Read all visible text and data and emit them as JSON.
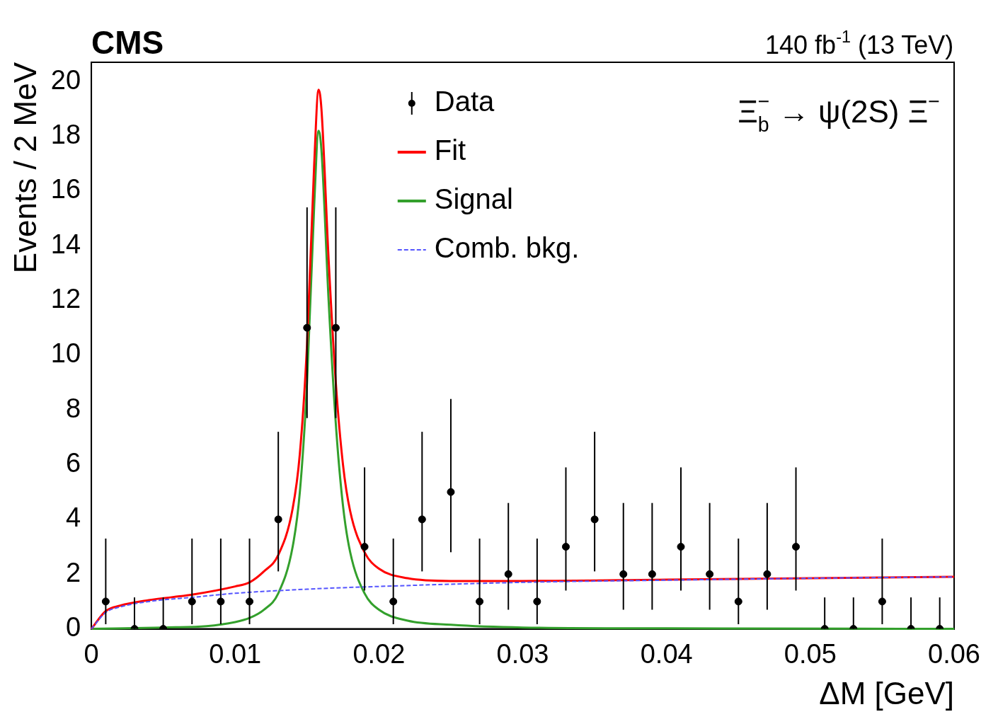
{
  "chart_data": {
    "type": "scatter",
    "title": "CMS",
    "subtitle": "140 fb$^{-1}$ (13 TeV)",
    "xlabel": "ΔM [GeV]",
    "ylabel": "Events / 2 MeV",
    "annotations": [
      "Ξ$_{b}$$^{−}$ → ψ(2S) Ξ$^{−}$"
    ],
    "xlim": [
      0,
      0.06
    ],
    "xticks": [
      0,
      0.01,
      0.02,
      0.03,
      0.04,
      0.05,
      0.06
    ],
    "ylim": [
      0,
      20.7
    ],
    "yticks": [
      0,
      2,
      4,
      6,
      8,
      10,
      12,
      14,
      16,
      18,
      20
    ],
    "grid": false,
    "legend": "top",
    "marker": "circle",
    "series": [
      {
        "name": "Data",
        "type": "scatter",
        "color": "#000000",
        "x": [
          0.001,
          0.003,
          0.005,
          0.007,
          0.009,
          0.011,
          0.013,
          0.015,
          0.017,
          0.019,
          0.021,
          0.023,
          0.025,
          0.027,
          0.029,
          0.031,
          0.033,
          0.035,
          0.037,
          0.039,
          0.041,
          0.043,
          0.045,
          0.047,
          0.049,
          0.051,
          0.053,
          0.055,
          0.057,
          0.059
        ],
        "values": [
          1,
          0,
          0,
          1,
          1,
          1,
          4,
          11,
          11,
          3,
          1,
          4,
          5,
          1,
          2,
          1,
          3,
          4,
          2,
          2,
          3,
          2,
          1,
          2,
          3,
          0,
          0,
          1,
          0,
          0
        ],
        "errors": [
          [
            0.17,
            3.3
          ],
          [
            0,
            1.15
          ],
          [
            0,
            1.15
          ],
          [
            0.17,
            3.3
          ],
          [
            0.17,
            3.3
          ],
          [
            0.17,
            3.3
          ],
          [
            2.1,
            7.2
          ],
          [
            7.7,
            15.4
          ],
          [
            7.7,
            15.4
          ],
          [
            1.4,
            5.9
          ],
          [
            0.17,
            3.3
          ],
          [
            2.1,
            7.2
          ],
          [
            2.8,
            8.4
          ],
          [
            0.17,
            3.3
          ],
          [
            0.7,
            4.6
          ],
          [
            0.17,
            3.3
          ],
          [
            1.4,
            5.9
          ],
          [
            2.1,
            7.2
          ],
          [
            0.7,
            4.6
          ],
          [
            0.7,
            4.6
          ],
          [
            1.4,
            5.9
          ],
          [
            0.7,
            4.6
          ],
          [
            0.17,
            3.3
          ],
          [
            0.7,
            4.6
          ],
          [
            1.4,
            5.9
          ],
          [
            0,
            1.15
          ],
          [
            0,
            1.15
          ],
          [
            0.17,
            3.3
          ],
          [
            0,
            1.15
          ],
          [
            0,
            1.15
          ]
        ]
      },
      {
        "name": "Fit",
        "type": "line",
        "color": "#ff0000",
        "marker": "none",
        "line_style": "solid",
        "x": [
          0,
          0.001,
          0.002,
          0.004,
          0.007,
          0.01,
          0.011,
          0.012,
          0.013,
          0.014,
          0.0145,
          0.015,
          0.0155,
          0.0158,
          0.016,
          0.0165,
          0.017,
          0.0175,
          0.018,
          0.019,
          0.02,
          0.022,
          0.025,
          0.03,
          0.04,
          0.05,
          0.06
        ],
        "values": [
          0,
          0.65,
          0.85,
          1.05,
          1.25,
          1.55,
          1.7,
          2.1,
          2.7,
          4.4,
          6.4,
          10.4,
          17,
          19.7,
          19,
          13.5,
          9,
          6,
          4.3,
          2.8,
          2.2,
          1.85,
          1.75,
          1.75,
          1.8,
          1.85,
          1.9
        ]
      },
      {
        "name": "Signal",
        "type": "line",
        "color": "#33a02c",
        "marker": "none",
        "line_style": "solid",
        "x": [
          0,
          0.005,
          0.008,
          0.01,
          0.011,
          0.012,
          0.013,
          0.014,
          0.0145,
          0.015,
          0.0155,
          0.0158,
          0.016,
          0.0165,
          0.017,
          0.0175,
          0.018,
          0.019,
          0.02,
          0.022,
          0.025,
          0.03,
          0.04,
          0.06
        ],
        "values": [
          0,
          0.05,
          0.1,
          0.25,
          0.4,
          0.7,
          1.3,
          3,
          5,
          9,
          15.5,
          18.2,
          17.5,
          12,
          7.5,
          4.5,
          2.8,
          1.3,
          0.7,
          0.3,
          0.15,
          0.05,
          0.02,
          0
        ]
      },
      {
        "name": "Comb. bkg.",
        "type": "line",
        "color": "#5555ff",
        "marker": "none",
        "line_style": "dashed",
        "x": [
          0,
          0.001,
          0.002,
          0.004,
          0.007,
          0.01,
          0.015,
          0.02,
          0.03,
          0.04,
          0.05,
          0.06
        ],
        "values": [
          0,
          0.6,
          0.8,
          1,
          1.15,
          1.3,
          1.45,
          1.55,
          1.7,
          1.78,
          1.85,
          1.9
        ]
      }
    ]
  }
}
